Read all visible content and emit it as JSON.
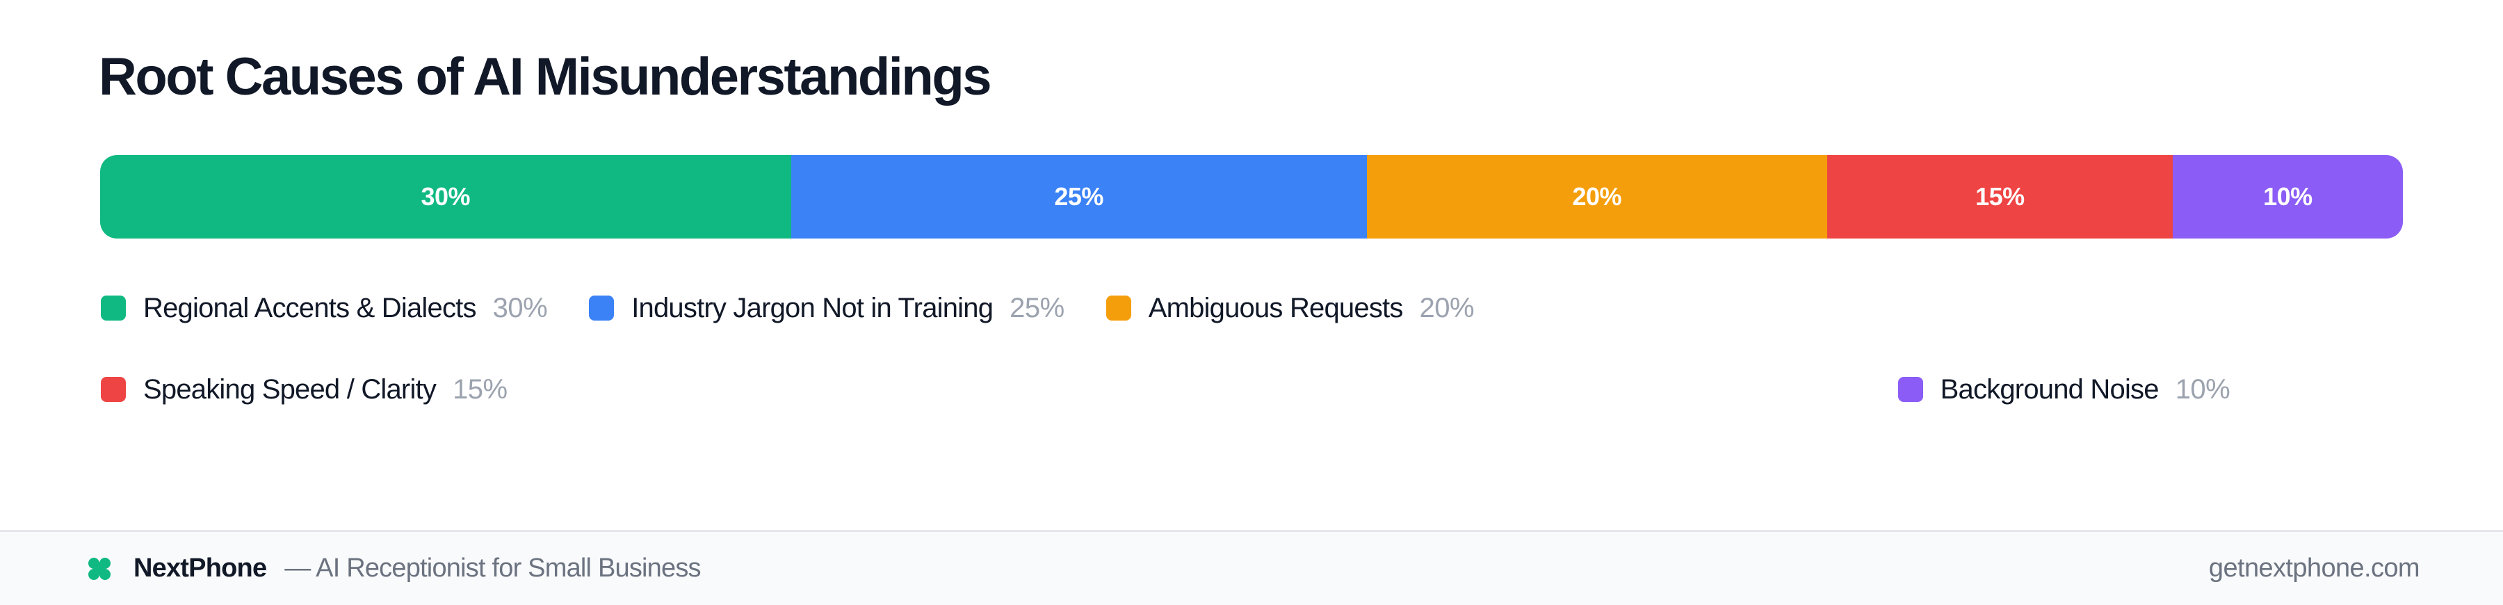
{
  "chart_data": {
    "type": "bar",
    "subtype": "stacked-100-horizontal",
    "title": "Root Causes of AI Misunderstandings",
    "categories": [
      "Regional Accents & Dialects",
      "Industry Jargon Not in Training",
      "Ambiguous Requests",
      "Speaking Speed / Clarity",
      "Background Noise"
    ],
    "values": [
      30,
      25,
      20,
      15,
      10
    ],
    "unit": "%",
    "colors": [
      "#10b981",
      "#3b82f6",
      "#f59e0b",
      "#ef4444",
      "#8b5cf6"
    ],
    "xlabel": "",
    "ylabel": "",
    "grid": false,
    "legend_position": "bottom"
  },
  "header": {
    "title": "Root Causes of AI Misunderstandings"
  },
  "bar": {
    "segments": [
      {
        "label": "30%",
        "value": 30,
        "color": "#10b981"
      },
      {
        "label": "25%",
        "value": 25,
        "color": "#3b82f6"
      },
      {
        "label": "20%",
        "value": 20,
        "color": "#f59e0b"
      },
      {
        "label": "15%",
        "value": 15,
        "color": "#ef4444"
      },
      {
        "label": "10%",
        "value": 10,
        "color": "#8b5cf6"
      }
    ]
  },
  "legend": {
    "items": [
      {
        "label": "Regional Accents & Dialects",
        "pct": "30%",
        "color": "#10b981"
      },
      {
        "label": "Industry Jargon Not in Training",
        "pct": "25%",
        "color": "#3b82f6"
      },
      {
        "label": "Ambiguous Requests",
        "pct": "20%",
        "color": "#f59e0b"
      },
      {
        "label": "Speaking Speed / Clarity",
        "pct": "15%",
        "color": "#ef4444"
      },
      {
        "label": "Background Noise",
        "pct": "10%",
        "color": "#8b5cf6"
      }
    ]
  },
  "footer": {
    "logo_icon": "clover-x-icon",
    "logo_color": "#10b981",
    "brand": "NextPhone",
    "tagline": "— AI Receptionist for Small Business",
    "url": "getnextphone.com"
  }
}
